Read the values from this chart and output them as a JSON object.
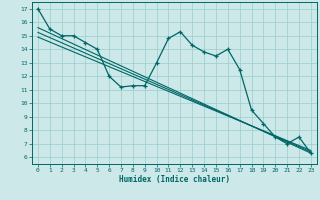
{
  "xlabel": "Humidex (Indice chaleur)",
  "ylabel": "",
  "bg_color": "#cce8e8",
  "grid_color": "#99cccc",
  "line_color": "#006666",
  "xlim": [
    -0.5,
    23.5
  ],
  "ylim": [
    5.5,
    17.5
  ],
  "xticks": [
    0,
    1,
    2,
    3,
    4,
    5,
    6,
    7,
    8,
    9,
    10,
    11,
    12,
    13,
    14,
    15,
    16,
    17,
    18,
    19,
    20,
    21,
    22,
    23
  ],
  "yticks": [
    6,
    7,
    8,
    9,
    10,
    11,
    12,
    13,
    14,
    15,
    16,
    17
  ],
  "main_x": [
    0,
    1,
    2,
    3,
    4,
    5,
    6,
    7,
    8,
    9,
    10,
    11,
    12,
    13,
    14,
    15,
    16,
    17,
    18,
    19,
    20,
    21,
    22,
    23
  ],
  "main_y": [
    17.0,
    15.5,
    15.0,
    15.0,
    14.5,
    14.0,
    12.0,
    11.2,
    11.3,
    11.3,
    13.0,
    14.8,
    15.3,
    14.3,
    13.8,
    13.5,
    14.0,
    12.5,
    9.5,
    8.5,
    7.5,
    7.0,
    7.5,
    6.3
  ],
  "trend1_x": [
    0,
    23
  ],
  "trend1_y": [
    15.6,
    6.3
  ],
  "trend2_x": [
    0,
    23
  ],
  "trend2_y": [
    14.9,
    6.5
  ],
  "trend3_x": [
    0,
    23
  ],
  "trend3_y": [
    15.25,
    6.4
  ]
}
